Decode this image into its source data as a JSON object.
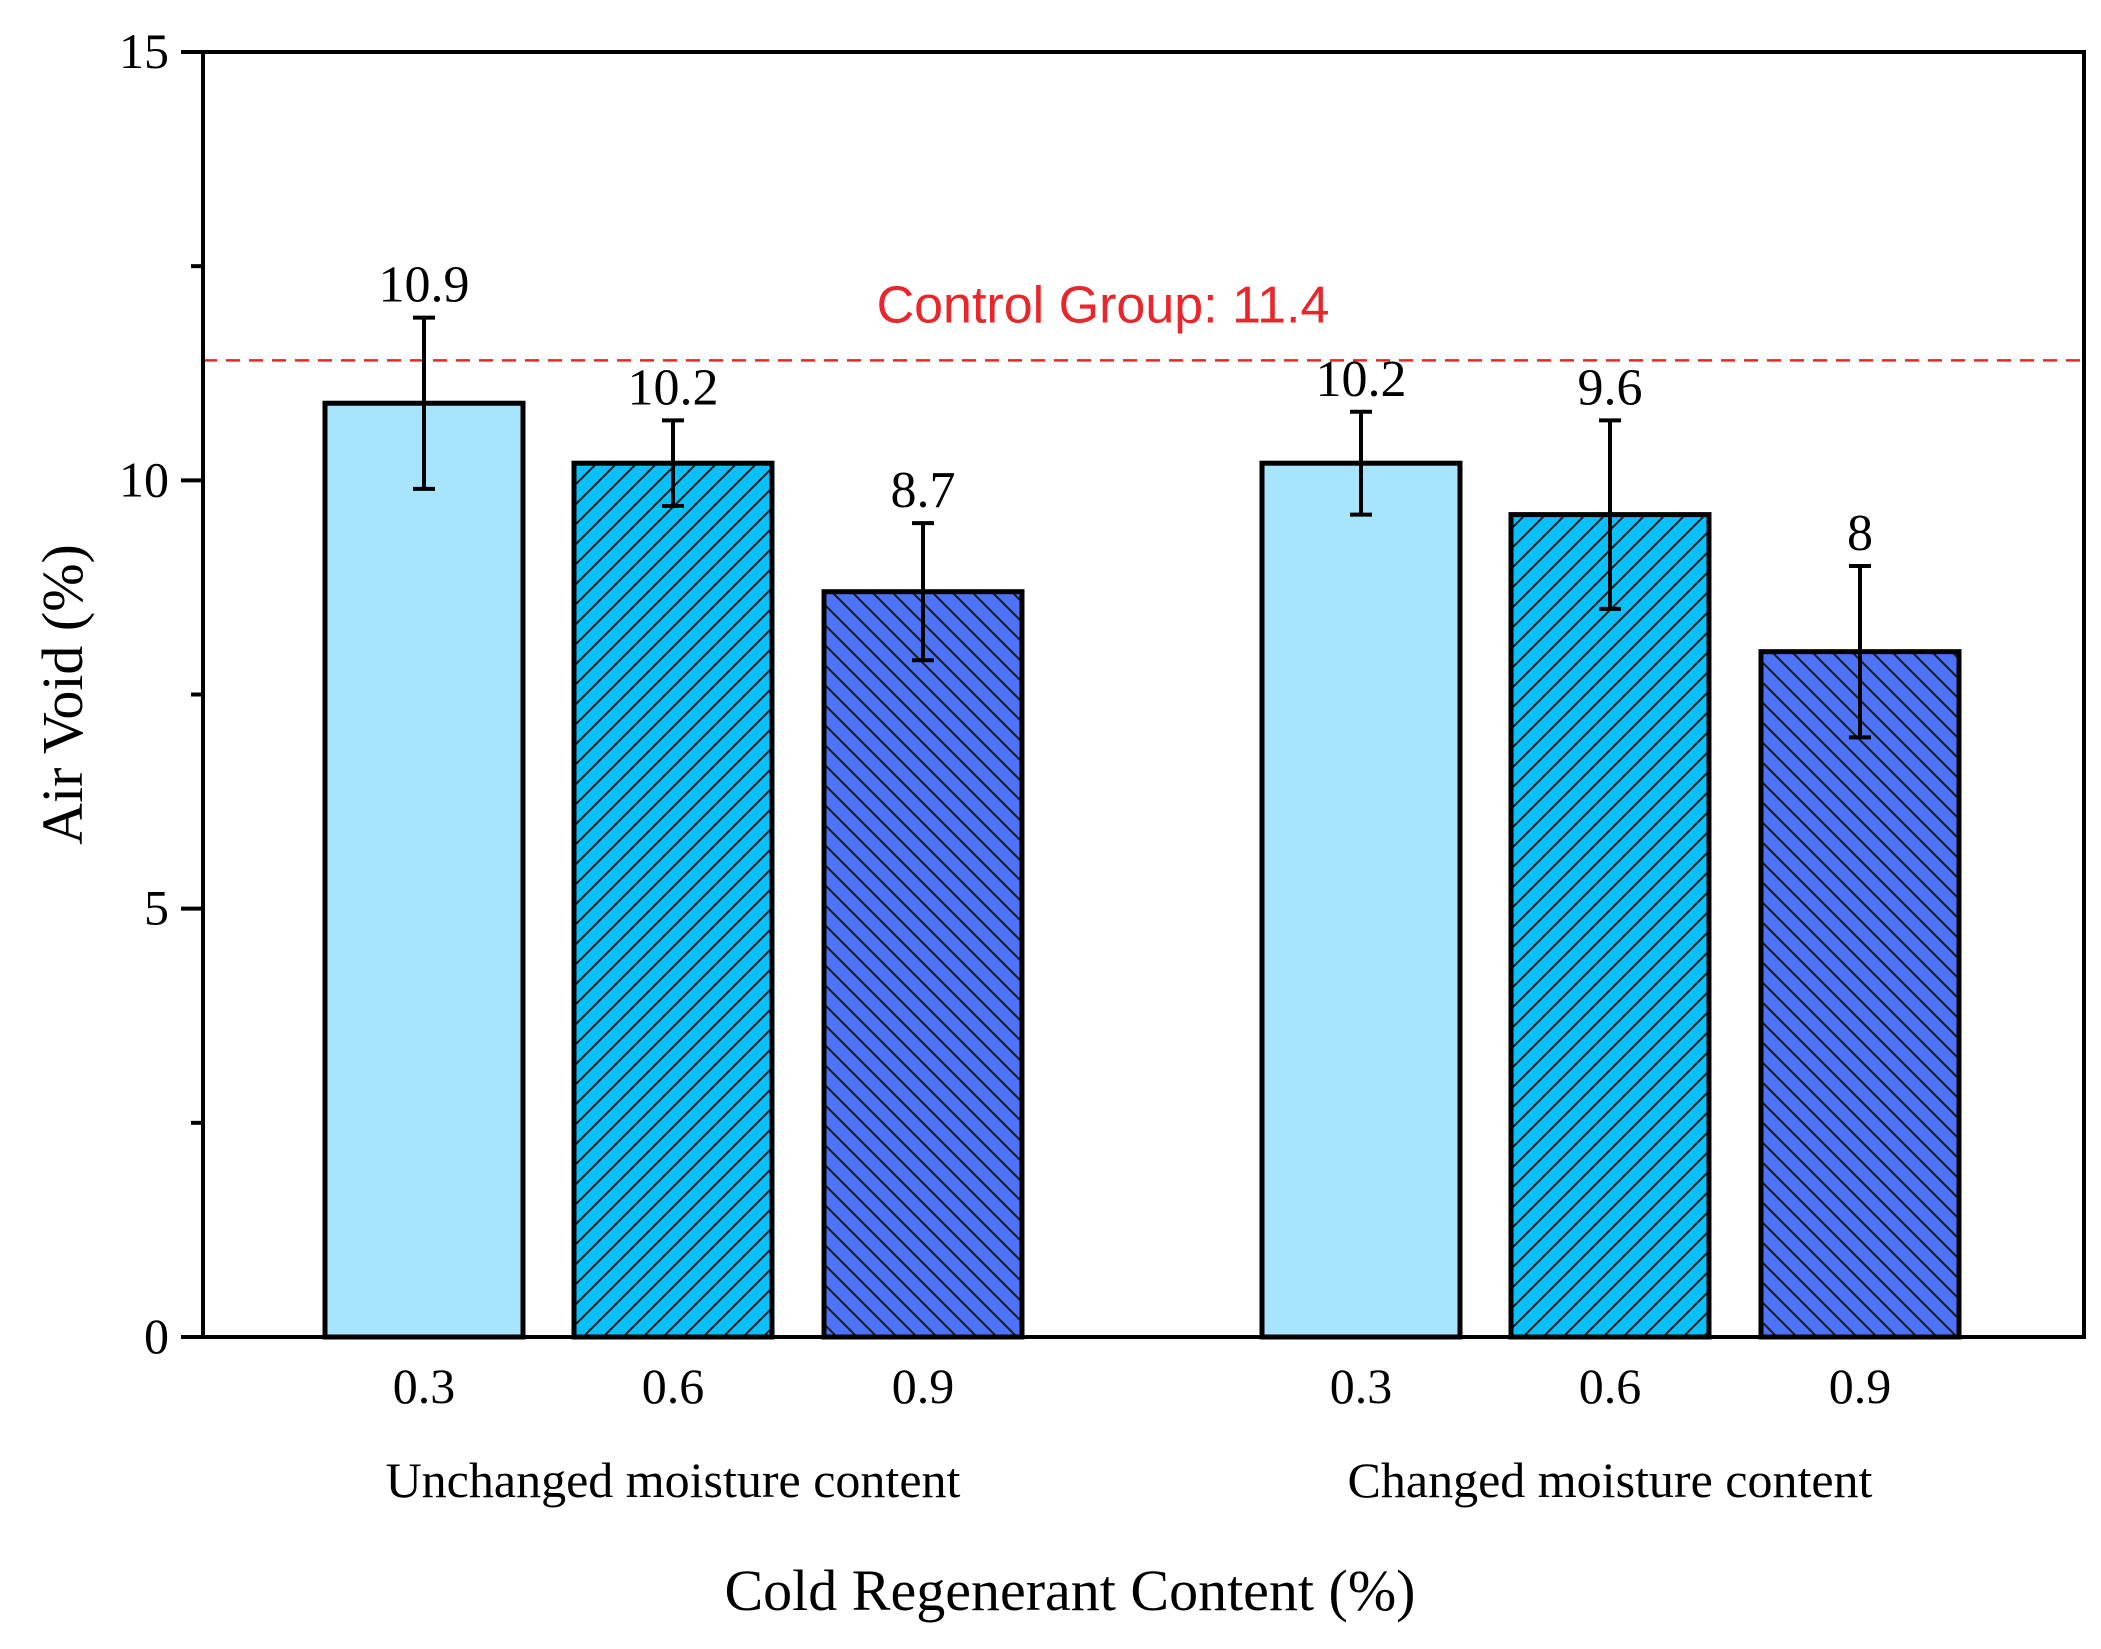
{
  "chart_data": {
    "type": "bar",
    "title": "",
    "xlabel": "Cold Regenerant Content (%)",
    "ylabel": "Air Void (%)",
    "ylim": [
      0,
      15
    ],
    "yticks": [
      0,
      5,
      10,
      15
    ],
    "yminor_ticks": [
      2.5,
      7.5,
      12.5
    ],
    "grid": false,
    "groups": [
      {
        "label": "Unchanged moisture content",
        "categories": [
          "0.3",
          "0.6",
          "0.9"
        ],
        "values": [
          10.9,
          10.2,
          8.7
        ],
        "errors": [
          1.0,
          0.5,
          0.8
        ],
        "value_labels": [
          "10.9",
          "10.2",
          "8.7"
        ]
      },
      {
        "label": "Changed moisture content",
        "categories": [
          "0.3",
          "0.6",
          "0.9"
        ],
        "values": [
          10.2,
          9.6,
          8.0
        ],
        "errors": [
          0.6,
          1.1,
          1.0
        ],
        "value_labels": [
          "10.2",
          "9.6",
          "8"
        ]
      }
    ],
    "bar_styles": [
      {
        "fill": "#a6e5fd",
        "pattern": "none"
      },
      {
        "fill": "#08c0fa",
        "pattern": "diagonal-up"
      },
      {
        "fill": "#4c73fa",
        "pattern": "diagonal-down"
      }
    ],
    "reference_line": {
      "value": 11.4,
      "label": "Control Group: 11.4",
      "color": "#e8262b",
      "style": "dashed"
    }
  }
}
